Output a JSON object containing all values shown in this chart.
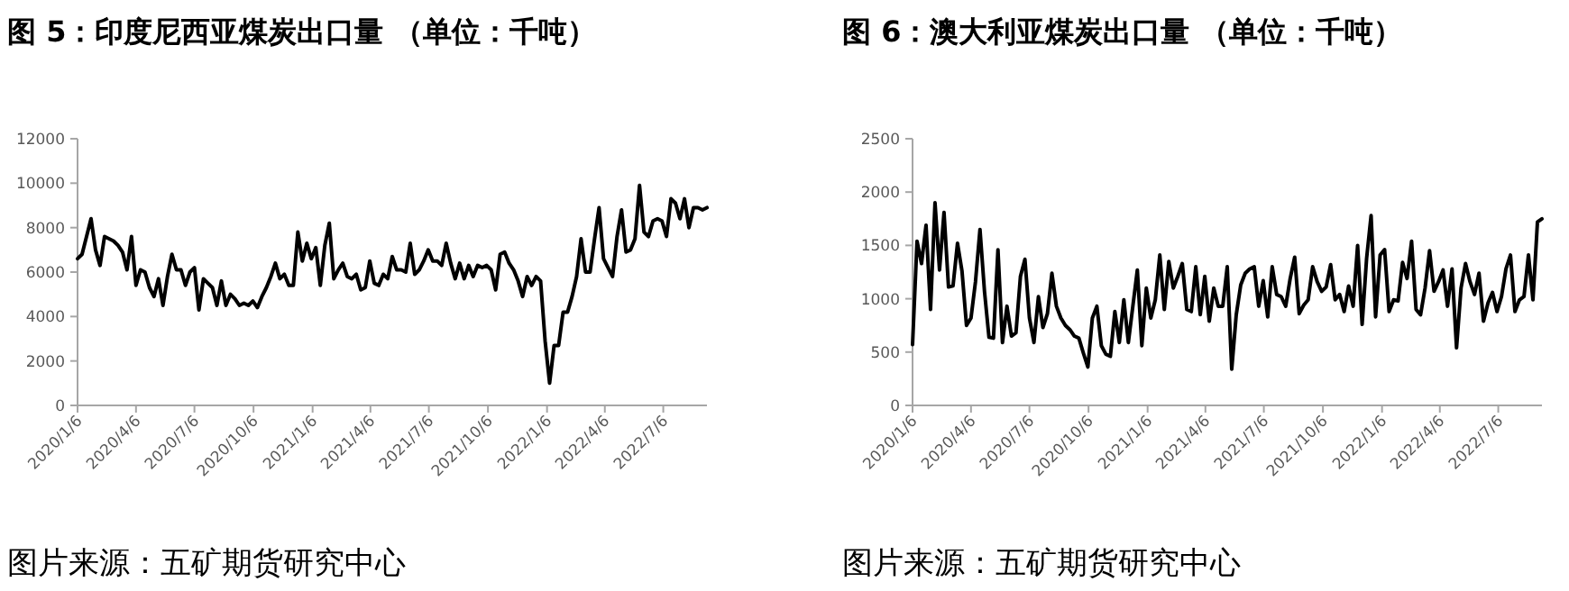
{
  "chart_data": [
    {
      "type": "line",
      "title": "图 5：印度尼西亚煤炭出口量 （单位：千吨）",
      "annotations": [
        "图片来源：五矿期货研究中心"
      ],
      "x": [
        "2020-01-06",
        "2020-01-13",
        "2020-01-20",
        "2020-01-27",
        "2020-02-03",
        "2020-02-10",
        "2020-02-17",
        "2020-02-24",
        "2020-03-02",
        "2020-03-09",
        "2020-03-16",
        "2020-03-23",
        "2020-03-30",
        "2020-04-06",
        "2020-04-13",
        "2020-04-20",
        "2020-04-27",
        "2020-05-04",
        "2020-05-11",
        "2020-05-18",
        "2020-05-25",
        "2020-06-01",
        "2020-06-08",
        "2020-06-15",
        "2020-06-22",
        "2020-06-29",
        "2020-07-06",
        "2020-07-13",
        "2020-07-20",
        "2020-07-27",
        "2020-08-03",
        "2020-08-10",
        "2020-08-17",
        "2020-08-24",
        "2020-08-31",
        "2020-09-07",
        "2020-09-14",
        "2020-09-21",
        "2020-09-28",
        "2020-10-05",
        "2020-10-12",
        "2020-10-19",
        "2020-10-26",
        "2020-11-02",
        "2020-11-09",
        "2020-11-16",
        "2020-11-23",
        "2020-11-30",
        "2020-12-07",
        "2020-12-14",
        "2020-12-21",
        "2020-12-28",
        "2021-01-04",
        "2021-01-11",
        "2021-01-18",
        "2021-01-25",
        "2021-02-01",
        "2021-02-08",
        "2021-02-15",
        "2021-02-22",
        "2021-03-01",
        "2021-03-08",
        "2021-03-15",
        "2021-03-22",
        "2021-03-29",
        "2021-04-05",
        "2021-04-12",
        "2021-04-19",
        "2021-04-26",
        "2021-05-03",
        "2021-05-10",
        "2021-05-17",
        "2021-05-24",
        "2021-05-31",
        "2021-06-07",
        "2021-06-14",
        "2021-06-21",
        "2021-06-28",
        "2021-07-05",
        "2021-07-12",
        "2021-07-19",
        "2021-07-26",
        "2021-08-02",
        "2021-08-09",
        "2021-08-16",
        "2021-08-23",
        "2021-08-30",
        "2021-09-06",
        "2021-09-13",
        "2021-09-20",
        "2021-09-27",
        "2021-10-04",
        "2021-10-11",
        "2021-10-18",
        "2021-10-25",
        "2021-11-01",
        "2021-11-08",
        "2021-11-15",
        "2021-11-22",
        "2021-11-29",
        "2021-12-06",
        "2021-12-13",
        "2021-12-20",
        "2021-12-27",
        "2022-01-03",
        "2022-01-10",
        "2022-01-17",
        "2022-01-24",
        "2022-01-31",
        "2022-02-07",
        "2022-02-14",
        "2022-02-21",
        "2022-02-28",
        "2022-03-07",
        "2022-03-14",
        "2022-03-21",
        "2022-03-28",
        "2022-04-04",
        "2022-04-11",
        "2022-04-18",
        "2022-04-25",
        "2022-05-02",
        "2022-05-09",
        "2022-05-16",
        "2022-05-23",
        "2022-05-30",
        "2022-06-06",
        "2022-06-13",
        "2022-06-20",
        "2022-06-27",
        "2022-07-04",
        "2022-07-11",
        "2022-07-18",
        "2022-07-25",
        "2022-08-01",
        "2022-08-08",
        "2022-08-15",
        "2022-08-22",
        "2022-08-29",
        "2022-09-05",
        "2022-09-12"
      ],
      "series": [
        {
          "color": "#000000",
          "values": [
            6600,
            6800,
            7600,
            8400,
            7000,
            6300,
            7600,
            7500,
            7400,
            7200,
            6900,
            6100,
            7600,
            5400,
            6100,
            6000,
            5300,
            4900,
            5700,
            4500,
            5800,
            6800,
            6100,
            6100,
            5400,
            6000,
            6200,
            4300,
            5700,
            5500,
            5300,
            4500,
            5600,
            4500,
            5000,
            4800,
            4500,
            4600,
            4500,
            4700,
            4400,
            4900,
            5300,
            5800,
            6400,
            5700,
            5900,
            5400,
            5400,
            7800,
            6500,
            7300,
            6600,
            7100,
            5400,
            7200,
            8200,
            5700,
            6100,
            6400,
            5800,
            5700,
            5900,
            5200,
            5300,
            6500,
            5500,
            5400,
            5900,
            5700,
            6700,
            6100,
            6100,
            6000,
            7300,
            5900,
            6100,
            6500,
            7000,
            6500,
            6500,
            6300,
            7300,
            6400,
            5700,
            6400,
            5700,
            6300,
            5800,
            6300,
            6200,
            6300,
            6100,
            5200,
            6800,
            6900,
            6400,
            6100,
            5600,
            4900,
            5800,
            5400,
            5800,
            5600,
            2900,
            1000,
            2700,
            2700,
            4200,
            4200,
            4900,
            5800,
            7500,
            6000,
            6000,
            7500,
            8900,
            6600,
            6200,
            5800,
            7600,
            8800,
            6900,
            7000,
            7500,
            9900,
            7800,
            7600,
            8300,
            8400,
            8300,
            7600,
            9300,
            9100,
            8400,
            9300,
            8000,
            8900,
            8900,
            8800,
            8900
          ]
        }
      ],
      "xlim": [
        "2020-01-06",
        "2022-09-12"
      ],
      "xticks": [
        {
          "value": "2020-01-06",
          "label": "2020/1/6"
        },
        {
          "value": "2020-04-06",
          "label": "2020/4/6"
        },
        {
          "value": "2020-07-06",
          "label": "2020/7/6"
        },
        {
          "value": "2020-10-06",
          "label": "2020/10/6"
        },
        {
          "value": "2021-01-06",
          "label": "2021/1/6"
        },
        {
          "value": "2021-04-06",
          "label": "2021/4/6"
        },
        {
          "value": "2021-07-06",
          "label": "2021/7/6"
        },
        {
          "value": "2021-10-06",
          "label": "2021/10/6"
        },
        {
          "value": "2022-01-06",
          "label": "2022/1/6"
        },
        {
          "value": "2022-04-06",
          "label": "2022/4/6"
        },
        {
          "value": "2022-07-06",
          "label": "2022/7/6"
        }
      ],
      "ylim": [
        0,
        12000
      ],
      "yticks": [
        0,
        2000,
        4000,
        6000,
        8000,
        10000,
        12000
      ]
    },
    {
      "type": "line",
      "title": "图 6：澳大利亚煤炭出口量 （单位：千吨）",
      "annotations": [
        "图片来源：五矿期货研究中心"
      ],
      "x": [
        "2020-01-06",
        "2020-01-13",
        "2020-01-20",
        "2020-01-27",
        "2020-02-03",
        "2020-02-10",
        "2020-02-17",
        "2020-02-24",
        "2020-03-02",
        "2020-03-09",
        "2020-03-16",
        "2020-03-23",
        "2020-03-30",
        "2020-04-06",
        "2020-04-13",
        "2020-04-20",
        "2020-04-27",
        "2020-05-04",
        "2020-05-11",
        "2020-05-18",
        "2020-05-25",
        "2020-06-01",
        "2020-06-08",
        "2020-06-15",
        "2020-06-22",
        "2020-06-29",
        "2020-07-06",
        "2020-07-13",
        "2020-07-20",
        "2020-07-27",
        "2020-08-03",
        "2020-08-10",
        "2020-08-17",
        "2020-08-24",
        "2020-08-31",
        "2020-09-07",
        "2020-09-14",
        "2020-09-21",
        "2020-09-28",
        "2020-10-05",
        "2020-10-12",
        "2020-10-19",
        "2020-10-26",
        "2020-11-02",
        "2020-11-09",
        "2020-11-16",
        "2020-11-23",
        "2020-11-30",
        "2020-12-07",
        "2020-12-14",
        "2020-12-21",
        "2020-12-28",
        "2021-01-04",
        "2021-01-11",
        "2021-01-18",
        "2021-01-25",
        "2021-02-01",
        "2021-02-08",
        "2021-02-15",
        "2021-02-22",
        "2021-03-01",
        "2021-03-08",
        "2021-03-15",
        "2021-03-22",
        "2021-03-29",
        "2021-04-05",
        "2021-04-12",
        "2021-04-19",
        "2021-04-26",
        "2021-05-03",
        "2021-05-10",
        "2021-05-17",
        "2021-05-24",
        "2021-05-31",
        "2021-06-07",
        "2021-06-14",
        "2021-06-21",
        "2021-06-28",
        "2021-07-05",
        "2021-07-12",
        "2021-07-19",
        "2021-07-26",
        "2021-08-02",
        "2021-08-09",
        "2021-08-16",
        "2021-08-23",
        "2021-08-30",
        "2021-09-06",
        "2021-09-13",
        "2021-09-20",
        "2021-09-27",
        "2021-10-04",
        "2021-10-11",
        "2021-10-18",
        "2021-10-25",
        "2021-11-01",
        "2021-11-08",
        "2021-11-15",
        "2021-11-22",
        "2021-11-29",
        "2021-12-06",
        "2021-12-13",
        "2021-12-20",
        "2021-12-27",
        "2022-01-03",
        "2022-01-10",
        "2022-01-17",
        "2022-01-24",
        "2022-01-31",
        "2022-02-07",
        "2022-02-14",
        "2022-02-21",
        "2022-02-28",
        "2022-03-07",
        "2022-03-14",
        "2022-03-21",
        "2022-03-28",
        "2022-04-04",
        "2022-04-11",
        "2022-04-18",
        "2022-04-25",
        "2022-05-02",
        "2022-05-09",
        "2022-05-16",
        "2022-05-23",
        "2022-05-30",
        "2022-06-06",
        "2022-06-13",
        "2022-06-20",
        "2022-06-27",
        "2022-07-04",
        "2022-07-11",
        "2022-07-18",
        "2022-07-25",
        "2022-08-01",
        "2022-08-08",
        "2022-08-15",
        "2022-08-22",
        "2022-08-29",
        "2022-09-05",
        "2022-09-12"
      ],
      "series": [
        {
          "color": "#000000",
          "values": [
            570,
            1540,
            1330,
            1690,
            900,
            1900,
            1270,
            1810,
            1110,
            1120,
            1520,
            1260,
            750,
            820,
            1160,
            1650,
            1070,
            640,
            630,
            1460,
            590,
            930,
            650,
            680,
            1210,
            1370,
            820,
            590,
            1020,
            730,
            860,
            1240,
            930,
            820,
            750,
            710,
            650,
            630,
            490,
            360,
            820,
            930,
            560,
            480,
            460,
            880,
            590,
            990,
            590,
            930,
            1270,
            560,
            1100,
            820,
            990,
            1410,
            900,
            1350,
            1100,
            1210,
            1330,
            900,
            880,
            1300,
            850,
            1210,
            790,
            1100,
            930,
            930,
            1300,
            340,
            850,
            1130,
            1240,
            1280,
            1300,
            930,
            1170,
            830,
            1300,
            1040,
            1020,
            930,
            1190,
            1390,
            860,
            940,
            990,
            1300,
            1160,
            1070,
            1110,
            1320,
            990,
            1040,
            880,
            1120,
            930,
            1500,
            760,
            1380,
            1780,
            830,
            1410,
            1460,
            880,
            990,
            980,
            1340,
            1190,
            1540,
            900,
            850,
            1100,
            1450,
            1070,
            1160,
            1270,
            930,
            1280,
            540,
            1100,
            1330,
            1160,
            1040,
            1240,
            790,
            960,
            1060,
            880,
            1020,
            1280,
            1410,
            880,
            990,
            1020,
            1410,
            990,
            1720,
            1750
          ]
        }
      ],
      "xlim": [
        "2020-01-06",
        "2022-09-12"
      ],
      "xticks": [
        {
          "value": "2020-01-06",
          "label": "2020/1/6"
        },
        {
          "value": "2020-04-06",
          "label": "2020/4/6"
        },
        {
          "value": "2020-07-06",
          "label": "2020/7/6"
        },
        {
          "value": "2020-10-06",
          "label": "2020/10/6"
        },
        {
          "value": "2021-01-06",
          "label": "2021/1/6"
        },
        {
          "value": "2021-04-06",
          "label": "2021/4/6"
        },
        {
          "value": "2021-07-06",
          "label": "2021/7/6"
        },
        {
          "value": "2021-10-06",
          "label": "2021/10/6"
        },
        {
          "value": "2022-01-06",
          "label": "2022/1/6"
        },
        {
          "value": "2022-04-06",
          "label": "2022/4/6"
        },
        {
          "value": "2022-07-06",
          "label": "2022/7/6"
        }
      ],
      "ylim": [
        0,
        2500
      ],
      "yticks": [
        0,
        500,
        1000,
        1500,
        2000,
        2500
      ]
    }
  ]
}
